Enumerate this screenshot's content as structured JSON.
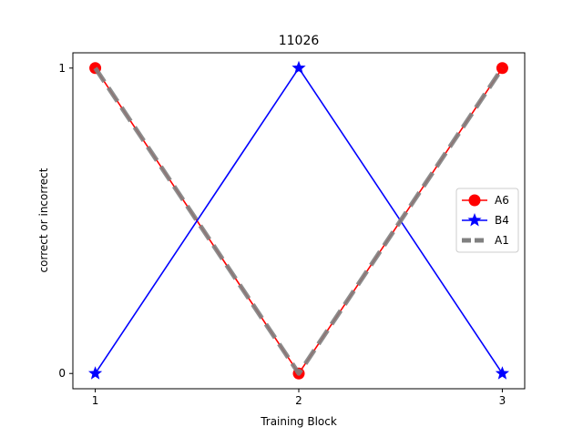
{
  "chart_data": {
    "type": "line",
    "title": "11026",
    "xlabel": "Training Block",
    "ylabel": "correct or incorrect",
    "x": [
      1,
      2,
      3
    ],
    "xticks": [
      "1",
      "2",
      "3"
    ],
    "yticks": [
      "0",
      "1"
    ],
    "xlim": [
      0.89,
      3.11
    ],
    "ylim": [
      -0.05,
      1.05
    ],
    "grid": false,
    "legend_position": "center-right",
    "series": [
      {
        "name": "A6",
        "values": [
          1,
          0,
          1
        ],
        "color": "#ff0000",
        "marker": "circle",
        "line_style": "solid"
      },
      {
        "name": "B4",
        "values": [
          0,
          1,
          0
        ],
        "color": "#0000ff",
        "marker": "star",
        "line_style": "solid"
      },
      {
        "name": "A1",
        "values": [
          1,
          0,
          1
        ],
        "color": "#808080",
        "marker": "none",
        "line_style": "dashed"
      }
    ]
  }
}
